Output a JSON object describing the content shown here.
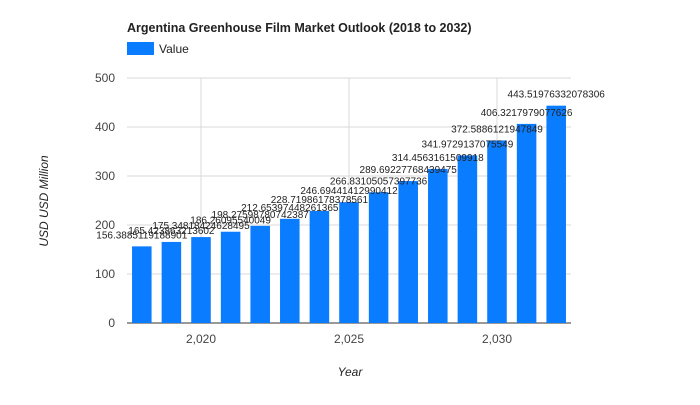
{
  "chart_data": {
    "type": "bar",
    "title": "Argentina Greenhouse Film Market Outlook (2018 to 2032)",
    "xlabel": "Year",
    "ylabel": "USD USD Million",
    "ylim": [
      0,
      500
    ],
    "yticks": [
      0,
      100,
      200,
      300,
      400,
      500
    ],
    "xticks": [
      {
        "value": 2020,
        "label": "2,020"
      },
      {
        "value": 2025,
        "label": "2,025"
      },
      {
        "value": 2030,
        "label": "2,030"
      }
    ],
    "grid": true,
    "legend_position": "top-left",
    "bar_color": "#0a7cff",
    "x": [
      2018,
      2019,
      2020,
      2021,
      2022,
      2023,
      2024,
      2025,
      2026,
      2027,
      2028,
      2029,
      2030,
      2031,
      2032
    ],
    "series": [
      {
        "name": "Value",
        "values": [
          156.3885119188901,
          165.423863213602,
          175.34818424628494,
          186.26095540049,
          198.27598780742386,
          212.65397448261365,
          228.7198617837856,
          246.69441412990412,
          266.83105057397734,
          289.69227768439475,
          314.4563161509918,
          341.9729137075549,
          372.5886121947849,
          406.3217979077626,
          443.51976332078306
        ],
        "labels": [
          "156.3885119188901",
          "165.423863213602",
          "175.34818424628495",
          "186.26095540049",
          "198.27598780742387",
          "212.65397448261365",
          "228.71986178378561",
          "246.69441412990412",
          "266.83105057397736",
          "289.69227768439475",
          "314.4563161509918",
          "341.9729137075549",
          "372.5886121947849",
          "406.3217979077626",
          "443.51976332078306"
        ]
      }
    ]
  }
}
